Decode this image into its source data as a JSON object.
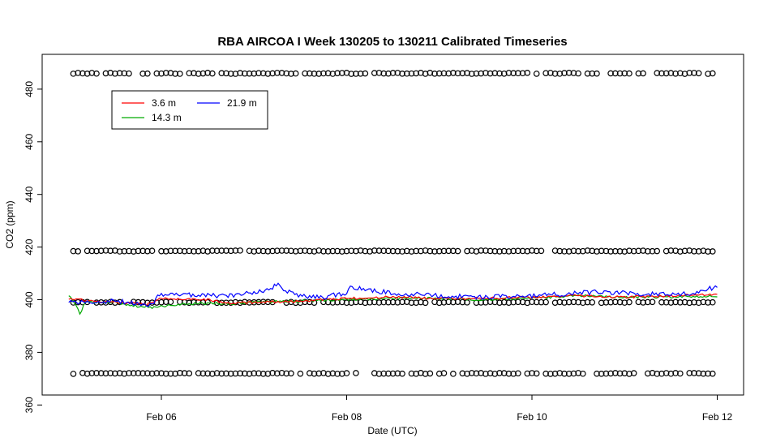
{
  "chart_data": {
    "type": "line",
    "title": "RBA AIRCOA I  Week 130205 to 130211  Calibrated Timeseries",
    "xlabel": "Date (UTC)",
    "ylabel": "CO2 (ppm)",
    "xlim": [
      "Feb 05 00:00",
      "Feb 12 06:00"
    ],
    "ylim": [
      365,
      490
    ],
    "x_ticks": [
      {
        "label": "Feb 06",
        "day": 6
      },
      {
        "label": "Feb 08",
        "day": 8
      },
      {
        "label": "Feb 10",
        "day": 10
      },
      {
        "label": "Feb 12",
        "day": 12
      }
    ],
    "y_ticks": [
      360,
      380,
      400,
      420,
      440,
      460,
      480
    ],
    "grid": false,
    "legend_position": "top-left",
    "series": [
      {
        "name": "3.6 m",
        "color": "#ff0000",
        "points": [
          [
            "Feb 05 00:00",
            400.5
          ],
          [
            "Feb 05 06:00",
            399.5
          ],
          [
            "Feb 05 12:00",
            399.0
          ],
          [
            "Feb 05 18:00",
            398.5
          ],
          [
            "Feb 05 20:00",
            398.0
          ],
          [
            "Feb 06 00:00",
            400.5
          ],
          [
            "Feb 06 12:00",
            400.0
          ],
          [
            "Feb 06 18:00",
            398.5
          ],
          [
            "Feb 07 00:00",
            399.0
          ],
          [
            "Feb 07 12:00",
            399.5
          ],
          [
            "Feb 08 00:00",
            400.5
          ],
          [
            "Feb 08 12:00",
            401.0
          ],
          [
            "Feb 09 00:00",
            400.5
          ],
          [
            "Feb 09 12:00",
            400.5
          ],
          [
            "Feb 10 00:00",
            401.0
          ],
          [
            "Feb 10 12:00",
            401.5
          ],
          [
            "Feb 11 00:00",
            401.0
          ],
          [
            "Feb 11 12:00",
            401.5
          ],
          [
            "Feb 12 00:00",
            402.0
          ]
        ]
      },
      {
        "name": "14.3 m",
        "color": "#00aa00",
        "points": [
          [
            "Feb 05 00:00",
            401.5
          ],
          [
            "Feb 05 02:00",
            398.0
          ],
          [
            "Feb 05 03:00",
            394.0
          ],
          [
            "Feb 05 04:00",
            399.0
          ],
          [
            "Feb 05 12:00",
            399.0
          ],
          [
            "Feb 05 18:00",
            397.5
          ],
          [
            "Feb 05 22:00",
            397.0
          ],
          [
            "Feb 06 06:00",
            398.5
          ],
          [
            "Feb 06 18:00",
            398.5
          ],
          [
            "Feb 07 00:00",
            399.0
          ],
          [
            "Feb 07 12:00",
            399.5
          ],
          [
            "Feb 08 00:00",
            400.0
          ],
          [
            "Feb 08 12:00",
            400.5
          ],
          [
            "Feb 09 00:00",
            400.5
          ],
          [
            "Feb 09 12:00",
            400.0
          ],
          [
            "Feb 10 00:00",
            400.5
          ],
          [
            "Feb 10 12:00",
            401.5
          ],
          [
            "Feb 11 00:00",
            401.0
          ],
          [
            "Feb 11 12:00",
            401.0
          ],
          [
            "Feb 12 00:00",
            401.5
          ]
        ]
      },
      {
        "name": "21.9 m",
        "color": "#0000ff",
        "points": [
          [
            "Feb 05 00:00",
            399.0
          ],
          [
            "Feb 05 12:00",
            399.5
          ],
          [
            "Feb 05 18:00",
            398.5
          ],
          [
            "Feb 05 22:00",
            398.0
          ],
          [
            "Feb 05 23:00",
            402.0
          ],
          [
            "Feb 06 12:00",
            401.5
          ],
          [
            "Feb 06 20:00",
            401.5
          ],
          [
            "Feb 06 22:00",
            402.5
          ],
          [
            "Feb 07 04:00",
            404.0
          ],
          [
            "Feb 07 06:00",
            406.0
          ],
          [
            "Feb 07 08:00",
            403.5
          ],
          [
            "Feb 07 12:00",
            401.5
          ],
          [
            "Feb 07 18:00",
            401.0
          ],
          [
            "Feb 08 00:00",
            402.5
          ],
          [
            "Feb 08 01:00",
            405.0
          ],
          [
            "Feb 08 06:00",
            403.5
          ],
          [
            "Feb 08 12:00",
            402.5
          ],
          [
            "Feb 09 00:00",
            401.5
          ],
          [
            "Feb 09 12:00",
            401.0
          ],
          [
            "Feb 10 00:00",
            401.5
          ],
          [
            "Feb 10 12:00",
            402.5
          ],
          [
            "Feb 10 18:00",
            403.0
          ],
          [
            "Feb 11 00:00",
            402.5
          ],
          [
            "Feb 11 12:00",
            402.0
          ],
          [
            "Feb 11 18:00",
            402.5
          ],
          [
            "Feb 12 00:00",
            405.0
          ]
        ]
      },
      {
        "name": "",
        "marker": "open-circle",
        "color": "#000000",
        "levels": [
          372,
          399,
          418.5,
          486
        ]
      }
    ]
  }
}
